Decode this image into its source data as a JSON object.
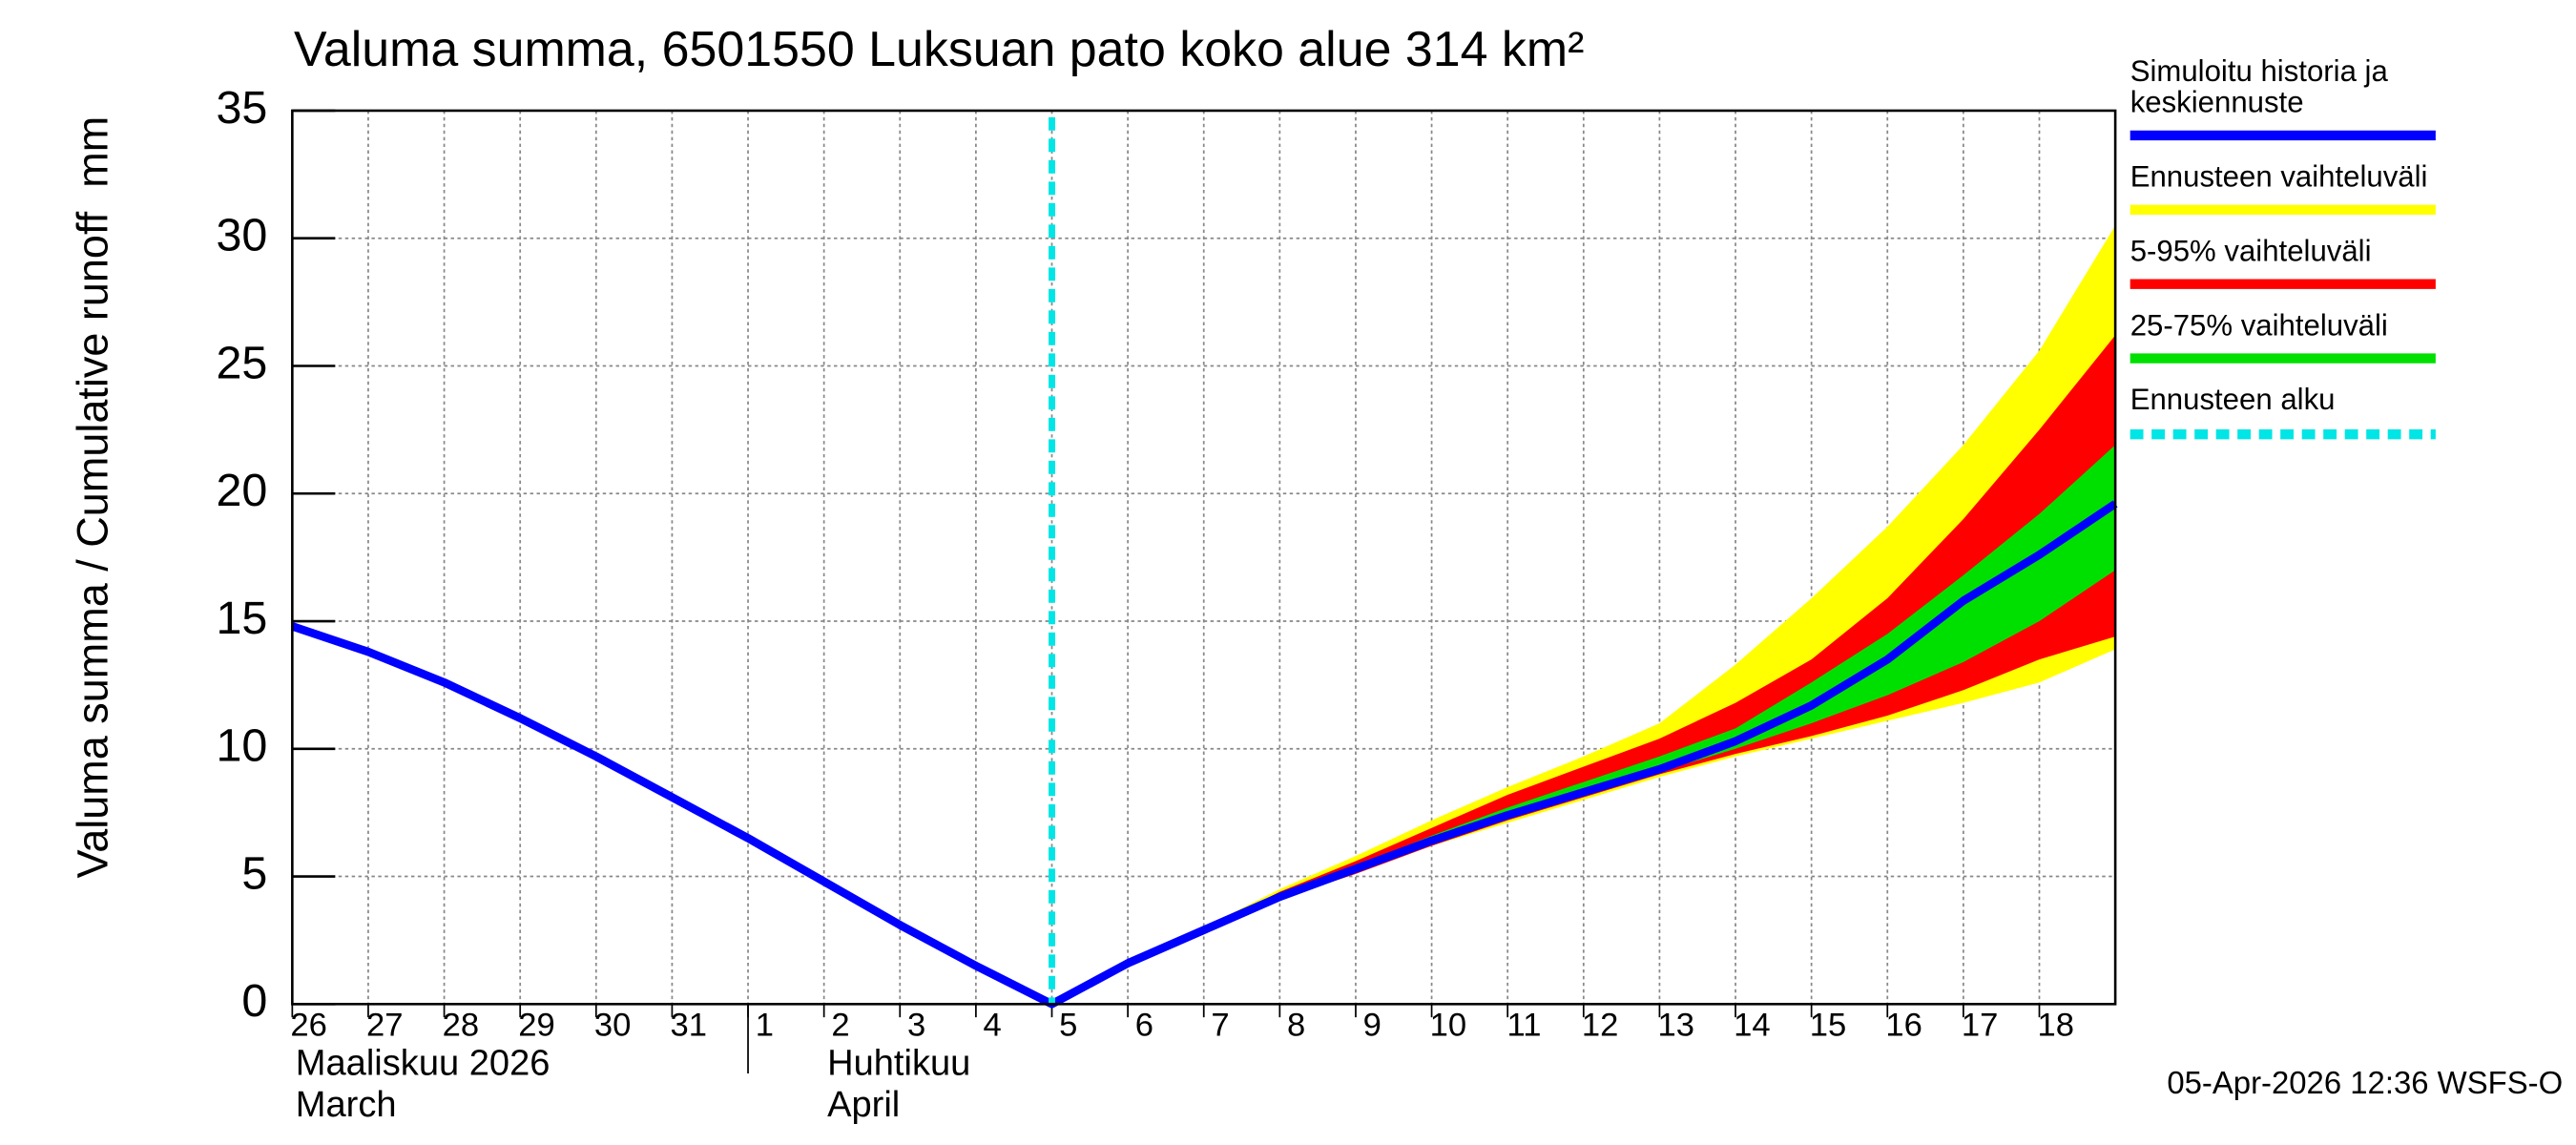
{
  "chart_data": {
    "type": "band-line",
    "title": "Valuma summa, 6501550 Luksuan pato koko alue 314 km²",
    "ylabel": "Valuma summa / Cumulative runoff",
    "yunit": "mm",
    "footer": "05-Apr-2026 12:36 WSFS-O",
    "x": [
      "2026-03-26",
      "2026-03-27",
      "2026-03-28",
      "2026-03-29",
      "2026-03-30",
      "2026-03-31",
      "2026-04-01",
      "2026-04-02",
      "2026-04-03",
      "2026-04-04",
      "2026-04-05",
      "2026-04-06",
      "2026-04-07",
      "2026-04-08",
      "2026-04-09",
      "2026-04-10",
      "2026-04-11",
      "2026-04-12",
      "2026-04-13",
      "2026-04-14",
      "2026-04-15",
      "2026-04-16",
      "2026-04-17",
      "2026-04-18",
      "2026-04-19"
    ],
    "xlim": [
      "2026-03-26",
      "2026-04-19"
    ],
    "xticks": [
      {
        "value": "2026-03-26",
        "label": "26"
      },
      {
        "value": "2026-03-27",
        "label": "27"
      },
      {
        "value": "2026-03-28",
        "label": "28"
      },
      {
        "value": "2026-03-29",
        "label": "29"
      },
      {
        "value": "2026-03-30",
        "label": "30"
      },
      {
        "value": "2026-03-31",
        "label": "31"
      },
      {
        "value": "2026-04-01",
        "label": "1"
      },
      {
        "value": "2026-04-02",
        "label": "2"
      },
      {
        "value": "2026-04-03",
        "label": "3"
      },
      {
        "value": "2026-04-04",
        "label": "4"
      },
      {
        "value": "2026-04-05",
        "label": "5"
      },
      {
        "value": "2026-04-06",
        "label": "6"
      },
      {
        "value": "2026-04-07",
        "label": "7"
      },
      {
        "value": "2026-04-08",
        "label": "8"
      },
      {
        "value": "2026-04-09",
        "label": "9"
      },
      {
        "value": "2026-04-10",
        "label": "10"
      },
      {
        "value": "2026-04-11",
        "label": "11"
      },
      {
        "value": "2026-04-12",
        "label": "12"
      },
      {
        "value": "2026-04-13",
        "label": "13"
      },
      {
        "value": "2026-04-14",
        "label": "14"
      },
      {
        "value": "2026-04-15",
        "label": "15"
      },
      {
        "value": "2026-04-16",
        "label": "16"
      },
      {
        "value": "2026-04-17",
        "label": "17"
      },
      {
        "value": "2026-04-18",
        "label": "18"
      }
    ],
    "months": [
      {
        "value": "2026-03-26",
        "label": "Maaliskuu 2026",
        "label_en": "March"
      },
      {
        "value": "2026-04-01",
        "label": "Huhtikuu",
        "label_en": "April"
      }
    ],
    "ylim": [
      0,
      35
    ],
    "yticks": [
      0,
      5,
      10,
      15,
      20,
      25,
      30,
      35
    ],
    "grid": true,
    "forecast_start": {
      "value": "2026-04-05",
      "name": "Ennusteen alku",
      "color": "#00e5e5"
    },
    "series": [
      {
        "name": "Simuloitu historia ja keskiennuste",
        "color": "#0000ff",
        "values": [
          14.8,
          13.8,
          12.6,
          11.2,
          9.7,
          8.1,
          6.5,
          4.8,
          3.1,
          1.5,
          0,
          1.6,
          2.9,
          4.2,
          5.3,
          6.4,
          7.4,
          8.3,
          9.2,
          10.3,
          11.7,
          13.5,
          15.8,
          17.6,
          19.6
        ]
      },
      {
        "name": "Ennusteen vaihteluväli",
        "color": "#ffff00",
        "upper": [
          null,
          null,
          null,
          null,
          null,
          null,
          null,
          null,
          null,
          null,
          0,
          1.6,
          3.0,
          4.5,
          5.8,
          7.2,
          8.5,
          9.7,
          11.0,
          13.3,
          15.9,
          18.7,
          21.9,
          25.6,
          30.5
        ],
        "lower": [
          null,
          null,
          null,
          null,
          null,
          null,
          null,
          null,
          null,
          null,
          0,
          1.5,
          2.8,
          4.1,
          5.1,
          6.2,
          7.1,
          8.0,
          8.9,
          9.7,
          10.4,
          11.1,
          11.8,
          12.6,
          13.9
        ]
      },
      {
        "name": "5-95% vaihteluväli",
        "color": "#ff0000",
        "upper": [
          null,
          null,
          null,
          null,
          null,
          null,
          null,
          null,
          null,
          null,
          0,
          1.6,
          2.9,
          4.4,
          5.6,
          6.9,
          8.2,
          9.3,
          10.4,
          11.8,
          13.5,
          15.9,
          19.0,
          22.5,
          26.2
        ],
        "lower": [
          null,
          null,
          null,
          null,
          null,
          null,
          null,
          null,
          null,
          null,
          0,
          1.5,
          2.8,
          4.1,
          5.1,
          6.2,
          7.2,
          8.1,
          9.0,
          9.8,
          10.5,
          11.3,
          12.3,
          13.5,
          14.4
        ]
      },
      {
        "name": "25-75% vaihteluväli",
        "color": "#00e000",
        "upper": [
          null,
          null,
          null,
          null,
          null,
          null,
          null,
          null,
          null,
          null,
          0,
          1.6,
          2.9,
          4.3,
          5.4,
          6.6,
          7.7,
          8.7,
          9.7,
          10.8,
          12.6,
          14.5,
          16.8,
          19.2,
          21.9
        ],
        "lower": [
          null,
          null,
          null,
          null,
          null,
          null,
          null,
          null,
          null,
          null,
          0,
          1.5,
          2.8,
          4.1,
          5.2,
          6.3,
          7.3,
          8.2,
          9.1,
          10.0,
          11.0,
          12.1,
          13.4,
          15.0,
          17.0
        ]
      }
    ]
  }
}
